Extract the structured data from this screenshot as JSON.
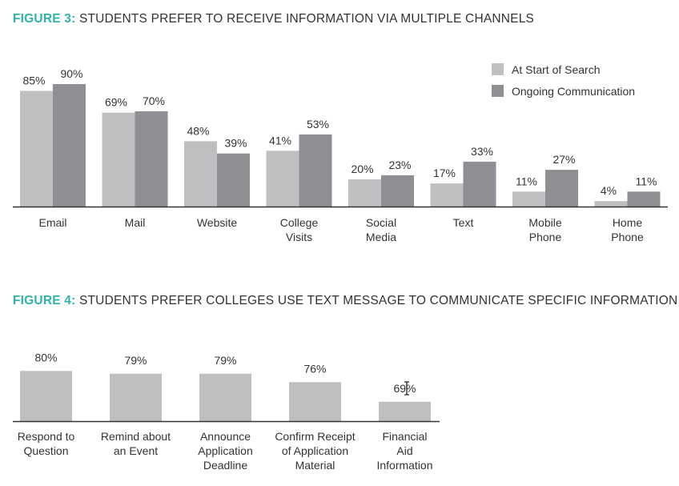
{
  "figure3": {
    "title_lead": "FIGURE 3:",
    "title_text": "STUDENTS PREFER TO RECEIVE INFORMATION VIA MULTIPLE CHANNELS"
  },
  "figure4": {
    "title_lead": "FIGURE 4:",
    "title_text": "STUDENTS PREFER COLLEGES USE TEXT MESSAGE TO COMMUNICATE SPECIFIC INFORMATION"
  },
  "colors": {
    "accent": "#2fb3a8",
    "series_light": "#bfbfc1",
    "series_dark": "#8f8f93",
    "axis": "#333333",
    "text": "#333333"
  },
  "chart_data": [
    {
      "type": "bar",
      "title": "STUDENTS PREFER TO RECEIVE INFORMATION VIA MULTIPLE CHANNELS",
      "categories": [
        "Email",
        "Mail",
        "Website",
        "College\nVisits",
        "Social\nMedia",
        "Text",
        "Mobile\nPhone",
        "Home\nPhone"
      ],
      "series": [
        {
          "name": "At Start of Search",
          "values": [
            85,
            69,
            48,
            41,
            20,
            17,
            11,
            4
          ],
          "labels": [
            "85%",
            "69%",
            "48%",
            "41%",
            "20%",
            "17%",
            "11%",
            "4%"
          ],
          "color": "#bfbfc1"
        },
        {
          "name": "Ongoing Communication",
          "values": [
            90,
            70,
            39,
            53,
            23,
            33,
            27,
            11
          ],
          "labels": [
            "90%",
            "70%",
            "39%",
            "53%",
            "23%",
            "33%",
            "27%",
            "11%"
          ],
          "color": "#8f8f93"
        }
      ],
      "ylim": [
        0,
        100
      ],
      "grid": false,
      "legend": "top-right"
    },
    {
      "type": "bar",
      "title": "STUDENTS PREFER COLLEGES USE TEXT MESSAGE TO COMMUNICATE SPECIFIC INFORMATION",
      "categories": [
        "Respond to\nQuestion",
        "Remind about\nan Event",
        "Announce\nApplication\nDeadline",
        "Confirm Receipt\nof Application\nMaterial",
        "Financial\nAid\nInformation"
      ],
      "values": [
        80,
        79,
        79,
        76,
        69
      ],
      "labels": [
        "80%",
        "79%",
        "79%",
        "76%",
        "69%"
      ],
      "color": "#bfbfc1",
      "ylim": [
        60,
        85
      ],
      "grid": false
    }
  ]
}
